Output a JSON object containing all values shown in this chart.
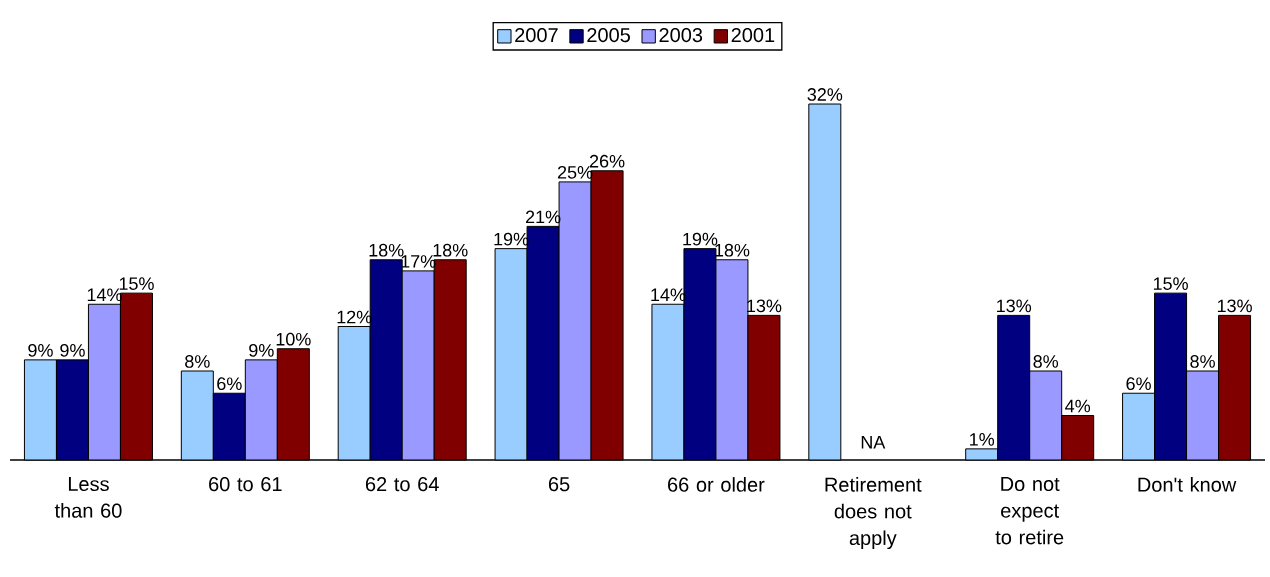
{
  "chart_data": {
    "type": "bar",
    "categories": [
      "Less than 60",
      "60 to 61",
      "62 to 64",
      "65",
      "66 or older",
      "Retirement does not apply",
      "Do not expect to retire",
      "Don't know"
    ],
    "series": [
      {
        "name": "2007",
        "color": "#99ccff",
        "values": [
          9,
          8,
          12,
          19,
          14,
          32,
          1,
          6
        ],
        "value_labels": [
          "9%",
          "8%",
          "12%",
          "19%",
          "14%",
          "32%",
          "1%",
          "6%"
        ]
      },
      {
        "name": "2005",
        "color": "#000080",
        "values": [
          9,
          6,
          18,
          21,
          19,
          null,
          13,
          15
        ],
        "value_labels": [
          "9%",
          "6%",
          "18%",
          "21%",
          "19%",
          null,
          "13%",
          "15%"
        ]
      },
      {
        "name": "2003",
        "color": "#9999ff",
        "values": [
          14,
          9,
          17,
          25,
          18,
          null,
          8,
          8
        ],
        "value_labels": [
          "14%",
          "9%",
          "17%",
          "25%",
          "18%",
          null,
          "8%",
          "8%"
        ]
      },
      {
        "name": "2001",
        "color": "#800000",
        "values": [
          15,
          10,
          18,
          26,
          13,
          null,
          4,
          13
        ],
        "value_labels": [
          "15%",
          "10%",
          "18%",
          "26%",
          "13%",
          null,
          "4%",
          "13%"
        ]
      }
    ],
    "annotations": [
      "NA"
    ],
    "legend": "top"
  }
}
